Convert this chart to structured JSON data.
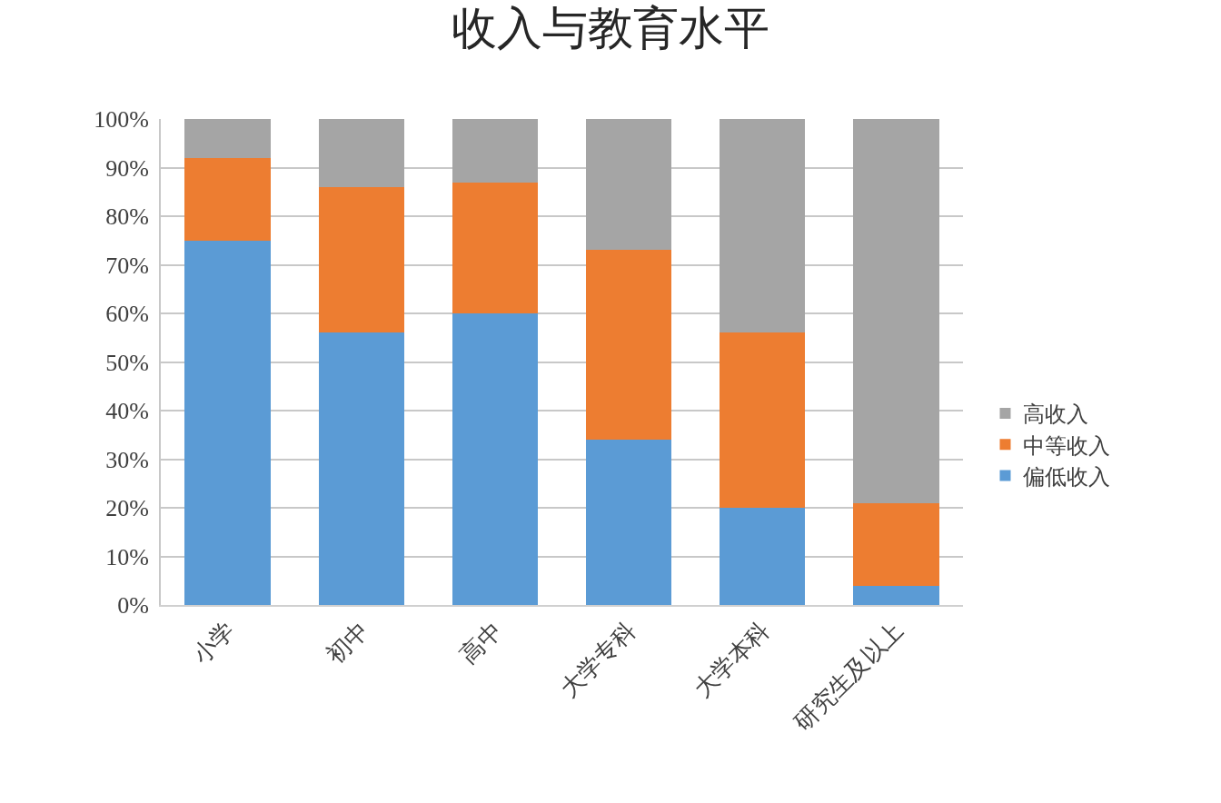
{
  "chart_data": {
    "type": "bar",
    "title": "收入与教育水平",
    "categories": [
      "小学",
      "初中",
      "高中",
      "大学专科",
      "大学本科",
      "研究生及以上"
    ],
    "stacked": true,
    "series": [
      {
        "name": "偏低收入",
        "color": "#5b9bd5",
        "values": [
          75,
          56,
          60,
          34,
          20,
          4
        ]
      },
      {
        "name": "中等收入",
        "color": "#ed7d31",
        "values": [
          17,
          30,
          27,
          39,
          36,
          17
        ]
      },
      {
        "name": "高收入",
        "color": "#a5a5a5",
        "values": [
          8,
          14,
          13,
          27,
          44,
          79
        ]
      }
    ],
    "ylim": [
      0,
      100
    ],
    "yticks": [
      {
        "value": 0,
        "label": "0%"
      },
      {
        "value": 10,
        "label": "10%"
      },
      {
        "value": 20,
        "label": "20%"
      },
      {
        "value": 30,
        "label": "30%"
      },
      {
        "value": 40,
        "label": "40%"
      },
      {
        "value": 50,
        "label": "50%"
      },
      {
        "value": 60,
        "label": "60%"
      },
      {
        "value": 70,
        "label": "70%"
      },
      {
        "value": 80,
        "label": "80%"
      },
      {
        "value": 90,
        "label": "90%"
      },
      {
        "value": 100,
        "label": "100%"
      }
    ],
    "grid": "y",
    "legend": "right"
  }
}
